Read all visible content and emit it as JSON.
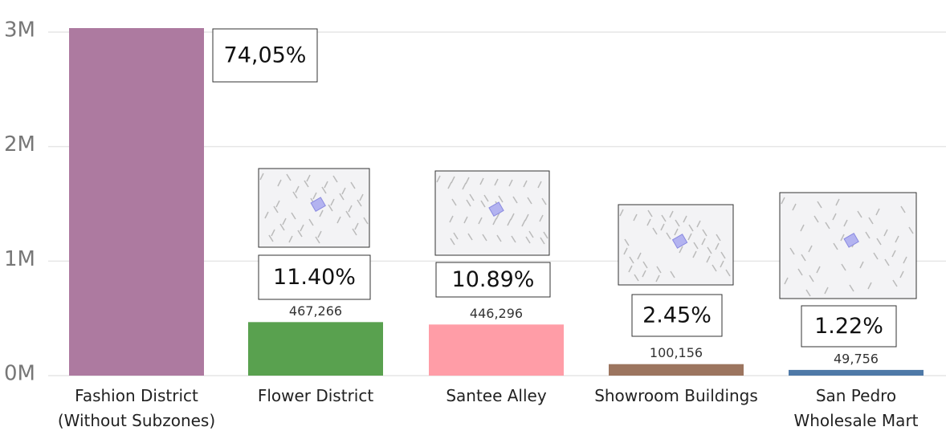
{
  "chart_data": {
    "type": "bar",
    "categories": [
      "Fashion District (Without Subzones)",
      "Flower District",
      "Santee Alley",
      "Showroom Buildings",
      "San Pedro Wholesale Mart"
    ],
    "series": [
      {
        "values": [
          3035000,
          467266,
          446296,
          100156,
          49756
        ],
        "value_labels": [
          null,
          "467,266",
          "446,296",
          "100,156",
          "49,756"
        ],
        "colors": [
          "#ad7aa0",
          "#59a14f",
          "#ff9da7",
          "#9c755f",
          "#4e79a7"
        ]
      }
    ],
    "annotations": [
      "74,05%",
      "11.40%",
      "10.89%",
      "2.45%",
      "1.22%"
    ],
    "ylim": [
      0,
      3000000
    ],
    "yticks": [
      {
        "value": 0,
        "label": "0M"
      },
      {
        "value": 1000000,
        "label": "1M"
      },
      {
        "value": 2000000,
        "label": "2M"
      },
      {
        "value": 3000000,
        "label": "3M"
      }
    ],
    "grid": true
  }
}
